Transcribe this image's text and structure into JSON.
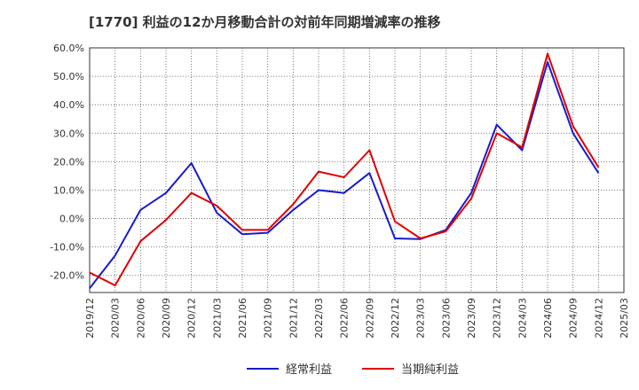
{
  "chart_data": {
    "type": "line",
    "title": "[1770]  利益の12か月移動合計の対前年同期増減率の推移",
    "xlabel": "",
    "ylabel": "",
    "ylim": [
      -26,
      60
    ],
    "yticks": [
      60,
      50,
      40,
      30,
      20,
      10,
      0,
      -10,
      -20
    ],
    "ytick_labels": [
      "60.0%",
      "50.0%",
      "40.0%",
      "30.0%",
      "20.0%",
      "10.0%",
      "0.0%",
      "-10.0%",
      "-20.0%"
    ],
    "categories": [
      "2019/12",
      "2020/03",
      "2020/06",
      "2020/09",
      "2020/12",
      "2021/03",
      "2021/06",
      "2021/09",
      "2021/12",
      "2022/03",
      "2022/06",
      "2022/09",
      "2022/12",
      "2023/03",
      "2023/06",
      "2023/09",
      "2023/12",
      "2024/03",
      "2024/06",
      "2024/09",
      "2024/12",
      "2025/03"
    ],
    "grid": true,
    "legend_position": "bottom",
    "series": [
      {
        "name": "経常利益",
        "color": "#1a1acc",
        "values": [
          -24.5,
          -13,
          3,
          9,
          19.5,
          2,
          -5.5,
          -5,
          3,
          10,
          9,
          16,
          -7,
          -7.2,
          -4,
          9,
          33,
          24,
          55,
          30,
          16,
          null
        ]
      },
      {
        "name": "当期純利益",
        "color": "#e00000",
        "values": [
          -19,
          -23.5,
          -8,
          -0.5,
          9,
          4.5,
          -4,
          -4,
          5,
          16.5,
          14.5,
          24,
          -1,
          -7,
          -4.5,
          7,
          30,
          25,
          58,
          32.5,
          18,
          null
        ]
      }
    ]
  }
}
